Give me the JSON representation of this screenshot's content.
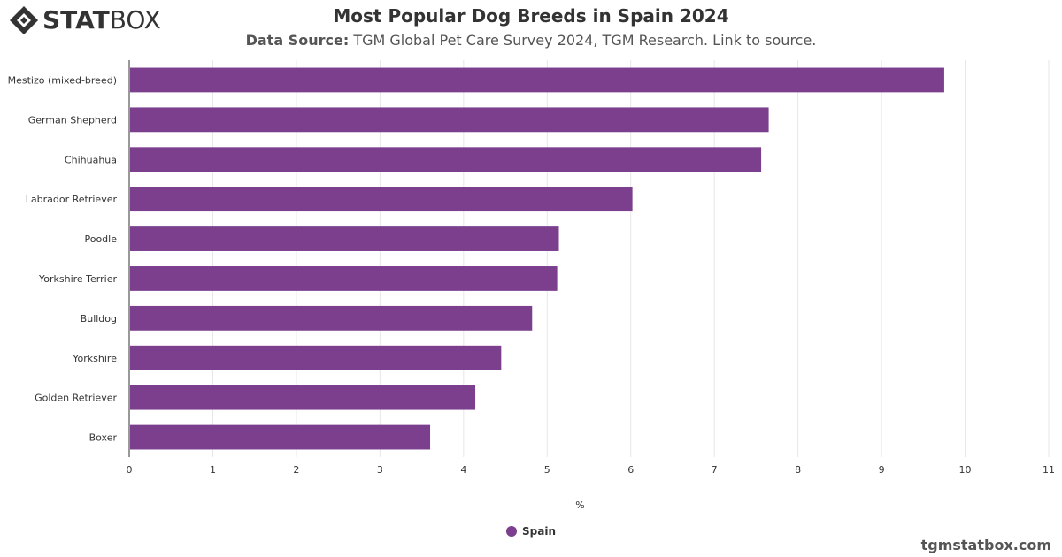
{
  "logo": {
    "part1": "STAT",
    "part2": "BOX"
  },
  "header": {
    "title": "Most Popular Dog Breeds in Spain 2024",
    "source_label": "Data Source:",
    "source_text": "TGM Global Pet Care Survey 2024, TGM Research. Link to source."
  },
  "chart_data": {
    "type": "bar",
    "orientation": "horizontal",
    "categories": [
      "Mestizo (mixed-breed)",
      "German Shepherd",
      "Chihuahua",
      "Labrador Retriever",
      "Poodle",
      "Yorkshire Terrier",
      "Bulldog",
      "Yorkshire",
      "Golden Retriever",
      "Boxer"
    ],
    "series": [
      {
        "name": "Spain",
        "values": [
          9.75,
          7.65,
          7.56,
          6.02,
          5.14,
          5.12,
          4.82,
          4.45,
          4.14,
          3.6
        ]
      }
    ],
    "xlabel": "%",
    "xlim": [
      0,
      11
    ],
    "xticks": [
      0,
      1,
      2,
      3,
      4,
      5,
      6,
      7,
      8,
      9,
      10,
      11
    ],
    "grid": true,
    "legend": "bottom-center"
  },
  "colors": {
    "bar": "#7b3f8e",
    "grid": "#e6e6e6",
    "axis": "#333333"
  },
  "watermark": "tgmstatbox.com"
}
